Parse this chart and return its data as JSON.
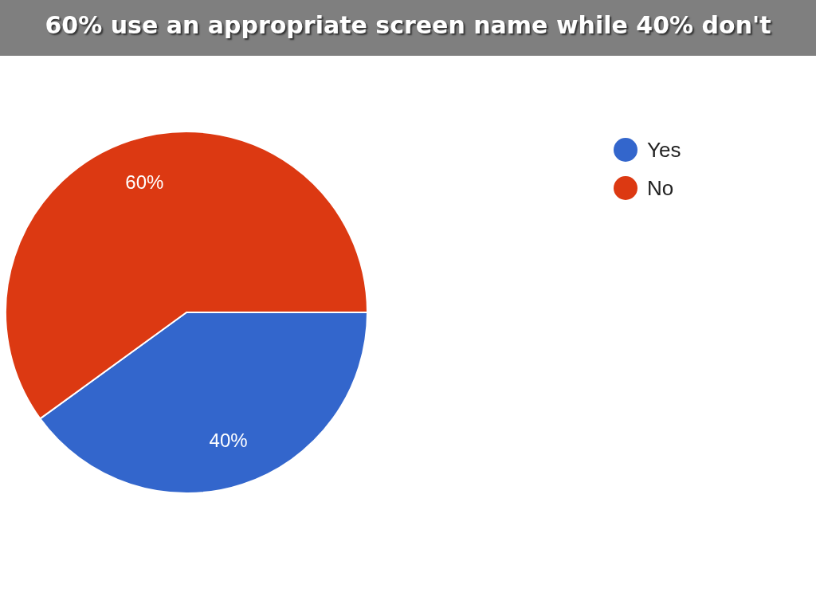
{
  "chart_data": {
    "type": "pie",
    "title": "60% use an appropriate screen name while 40% don't",
    "categories": [
      "Yes",
      "No"
    ],
    "values": [
      40,
      60
    ],
    "colors": [
      "#3366cc",
      "#dc3912"
    ],
    "value_labels": [
      "40%",
      "60%"
    ],
    "legend": "top right"
  }
}
